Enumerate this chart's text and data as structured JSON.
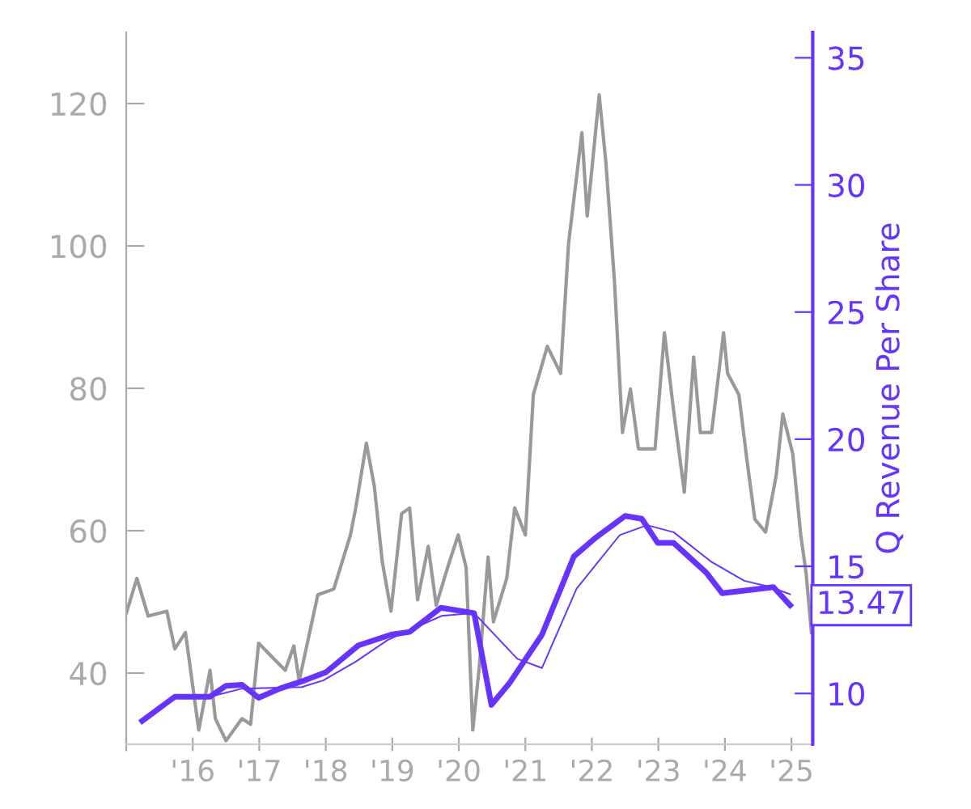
{
  "chart_data": {
    "type": "line",
    "y2label": "Q Revenue Per Share",
    "xlim": [
      2015.0,
      2025.32
    ],
    "ylim": [
      30,
      130
    ],
    "y2lim": [
      8,
      36
    ],
    "xticks": [
      {
        "value": 2015,
        "label": null
      },
      {
        "value": 2016,
        "label": "'16"
      },
      {
        "value": 2017,
        "label": "'17"
      },
      {
        "value": 2018,
        "label": "'18"
      },
      {
        "value": 2019,
        "label": "'19"
      },
      {
        "value": 2020,
        "label": "'20"
      },
      {
        "value": 2021,
        "label": "'21"
      },
      {
        "value": 2022,
        "label": "'22"
      },
      {
        "value": 2023,
        "label": "'23"
      },
      {
        "value": 2024,
        "label": "'24"
      },
      {
        "value": 2025,
        "label": "'25"
      }
    ],
    "yticks": [
      40,
      60,
      80,
      100,
      120
    ],
    "y2ticks": [
      10,
      15,
      20,
      25,
      30,
      35
    ],
    "grid": false,
    "legend": false,
    "marker": "none",
    "line_style": "solid",
    "series": [
      {
        "color": "#999999",
        "axis": "y",
        "x": [
          2015.0,
          2015.16,
          2015.33,
          2015.61,
          2015.73,
          2015.89,
          2016.09,
          2016.26,
          2016.34,
          2016.5,
          2016.74,
          2016.87,
          2016.99,
          2017.23,
          2017.39,
          2017.52,
          2017.6,
          2017.88,
          2018.12,
          2018.37,
          2018.45,
          2018.61,
          2018.73,
          2018.85,
          2018.98,
          2019.14,
          2019.26,
          2019.38,
          2019.54,
          2019.66,
          2019.83,
          2019.99,
          2020.11,
          2020.21,
          2020.31,
          2020.44,
          2020.52,
          2020.72,
          2020.84,
          2021.0,
          2021.12,
          2021.33,
          2021.53,
          2021.65,
          2021.85,
          2021.93,
          2022.11,
          2022.21,
          2022.34,
          2022.46,
          2022.58,
          2022.7,
          2022.95,
          2023.09,
          2023.23,
          2023.39,
          2023.53,
          2023.63,
          2023.8,
          2023.98,
          2024.04,
          2024.21,
          2024.33,
          2024.45,
          2024.61,
          2024.77,
          2024.87,
          2025.02,
          2025.14,
          2025.22,
          2025.3
        ],
        "values": [
          48.4,
          53.3,
          48,
          48.7,
          43.4,
          45.7,
          32,
          40.4,
          33.6,
          30.5,
          33.6,
          32.8,
          44.2,
          41.9,
          40.4,
          43.8,
          38.9,
          51,
          51.8,
          59.4,
          63.2,
          72.3,
          66.2,
          55.6,
          48.7,
          62.4,
          63.2,
          50.3,
          57.8,
          49.5,
          54.8,
          59.4,
          54.8,
          32,
          41.1,
          56.3,
          47.2,
          53.3,
          63.2,
          59.4,
          79.1,
          85.9,
          82.1,
          100.4,
          115.9,
          104.2,
          121.2,
          111.8,
          95,
          73.8,
          79.9,
          71.5,
          71.5,
          87.8,
          76.8,
          65.4,
          84.4,
          73.8,
          73.8,
          87.8,
          82.1,
          79.1,
          70,
          61.6,
          59.8,
          67.7,
          76.4,
          70.8,
          59.4,
          54.1,
          45.7
        ]
      },
      {
        "color": "#6633ff",
        "axis": "y2",
        "x": [
          2015.24,
          2015.73,
          2016.26,
          2016.5,
          2016.74,
          2016.99,
          2017.31,
          2017.68,
          2018.0,
          2018.49,
          2018.98,
          2019.26,
          2019.73,
          2020.23,
          2020.49,
          2020.76,
          2021.25,
          2021.73,
          2022.06,
          2022.5,
          2022.75,
          2022.99,
          2023.23,
          2023.72,
          2023.96,
          2024.73,
          2024.98
        ],
        "values": [
          8.92,
          9.87,
          9.87,
          10.3,
          10.34,
          9.83,
          10.19,
          10.51,
          10.83,
          11.89,
          12.31,
          12.42,
          13.37,
          13.16,
          9.55,
          10.4,
          12.31,
          15.39,
          16.13,
          16.98,
          16.87,
          15.92,
          15.92,
          14.75,
          13.94,
          14.18,
          13.47
        ]
      },
      {
        "color": "#6633ff",
        "axis": "y2",
        "x": [
          2016.26,
          2016.74,
          2017.64,
          2017.96,
          2018.45,
          2018.93,
          2019.74,
          2020.23,
          2020.88,
          2021.25,
          2021.77,
          2022.42,
          2022.83,
          2023.23,
          2023.8,
          2024.29,
          2024.69,
          2024.98
        ],
        "values": [
          9.87,
          10.19,
          10.25,
          10.51,
          11.25,
          12.1,
          13.05,
          13.16,
          11.36,
          11.0,
          14.12,
          16.23,
          16.62,
          16.34,
          15.17,
          14.43,
          14.18,
          13.9
        ]
      }
    ],
    "annotations": [
      "13.47"
    ]
  }
}
